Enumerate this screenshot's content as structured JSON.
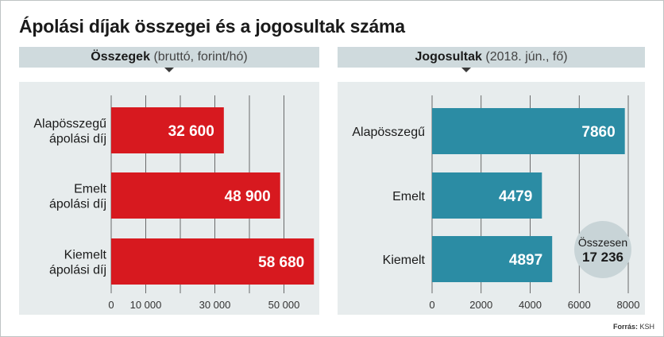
{
  "title": "Ápolási díjak összegei és a jogosultak száma",
  "source_label": "Forrás:",
  "source_value": "KSH",
  "colors": {
    "left_bar": "#d7191f",
    "right_bar": "#2b8ca4",
    "panel_bg": "#e7eced",
    "header_bg": "#cfdadd",
    "badge_bg": "#c8d4d7"
  },
  "total_badge": {
    "label": "Összesen",
    "value": "17 236"
  },
  "chart_data": [
    {
      "type": "bar",
      "orientation": "horizontal",
      "title": "Összegek",
      "subtitle": "(bruttó, forint/hó)",
      "categories": [
        "Alapösszegű ápolási díj",
        "Emelt ápolási díj",
        "Kiemelt ápolási díj"
      ],
      "category_lines": [
        [
          "Alapösszegű",
          "ápolási díj"
        ],
        [
          "Emelt",
          "ápolási díj"
        ],
        [
          "Kiemelt",
          "ápolási díj"
        ]
      ],
      "values": [
        32600,
        48900,
        58680
      ],
      "value_labels": [
        "32 600",
        "48 900",
        "58 680"
      ],
      "xlim": [
        0,
        60000
      ],
      "ticks": [
        0,
        10000,
        30000,
        50000
      ],
      "tick_labels": [
        "0",
        "10 000",
        "30 000",
        "50 000"
      ],
      "grid_values": [
        0,
        10000,
        20000,
        30000,
        40000,
        50000
      ],
      "grid": true
    },
    {
      "type": "bar",
      "orientation": "horizontal",
      "title": "Jogosultak",
      "subtitle": "(2018. jún., fő)",
      "categories": [
        "Alapösszegű",
        "Emelt",
        "Kiemelt"
      ],
      "category_lines": [
        [
          "Alapösszegű"
        ],
        [
          "Emelt"
        ],
        [
          "Kiemelt"
        ]
      ],
      "values": [
        7860,
        4479,
        4897
      ],
      "value_labels": [
        "7860",
        "4479",
        "4897"
      ],
      "xlim": [
        0,
        8000
      ],
      "ticks": [
        0,
        2000,
        4000,
        6000,
        8000
      ],
      "tick_labels": [
        "0",
        "2000",
        "4000",
        "6000",
        "8000"
      ],
      "grid_values": [
        0,
        2000,
        4000,
        6000,
        8000
      ],
      "grid": true
    }
  ]
}
